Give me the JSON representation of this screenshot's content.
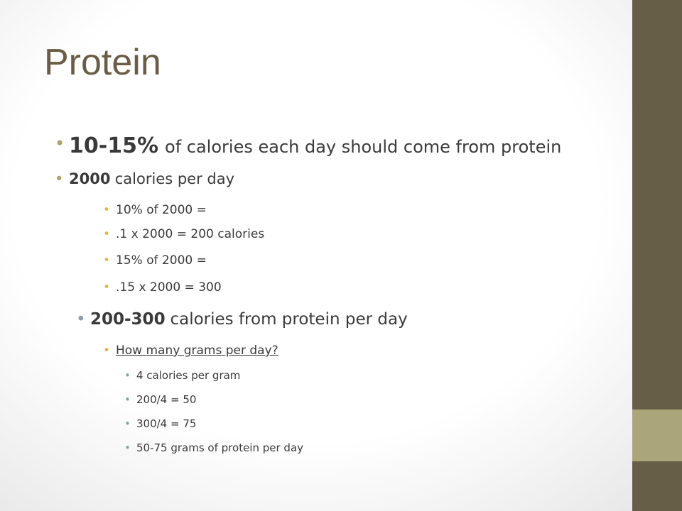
{
  "title": "Protein",
  "bullets": [
    {
      "level": 1,
      "bold": "10-15%",
      "text": "of calories each day should come from protein"
    },
    {
      "level": 2,
      "bold": "2000",
      "text": "calories per day"
    },
    {
      "level": 3,
      "text": "10% of 2000 ="
    },
    {
      "level": 3,
      "text": ".1 x 2000 = 200 calories"
    },
    {
      "level": 3,
      "text": "15% of 2000 ="
    },
    {
      "level": 3,
      "text": ".15 x 2000 = 300"
    },
    {
      "level": 4,
      "bold": "200-300",
      "text": "calories from protein per day"
    },
    {
      "level": 3,
      "text": "How many grams per day?",
      "underline": true
    },
    {
      "level": 5,
      "text": "4 calories per gram"
    },
    {
      "level": 5,
      "text": "200/4 = 50"
    },
    {
      "level": 5,
      "text": "300/4 = 75"
    },
    {
      "level": 5,
      "text": "50-75 grams of protein per day"
    }
  ]
}
